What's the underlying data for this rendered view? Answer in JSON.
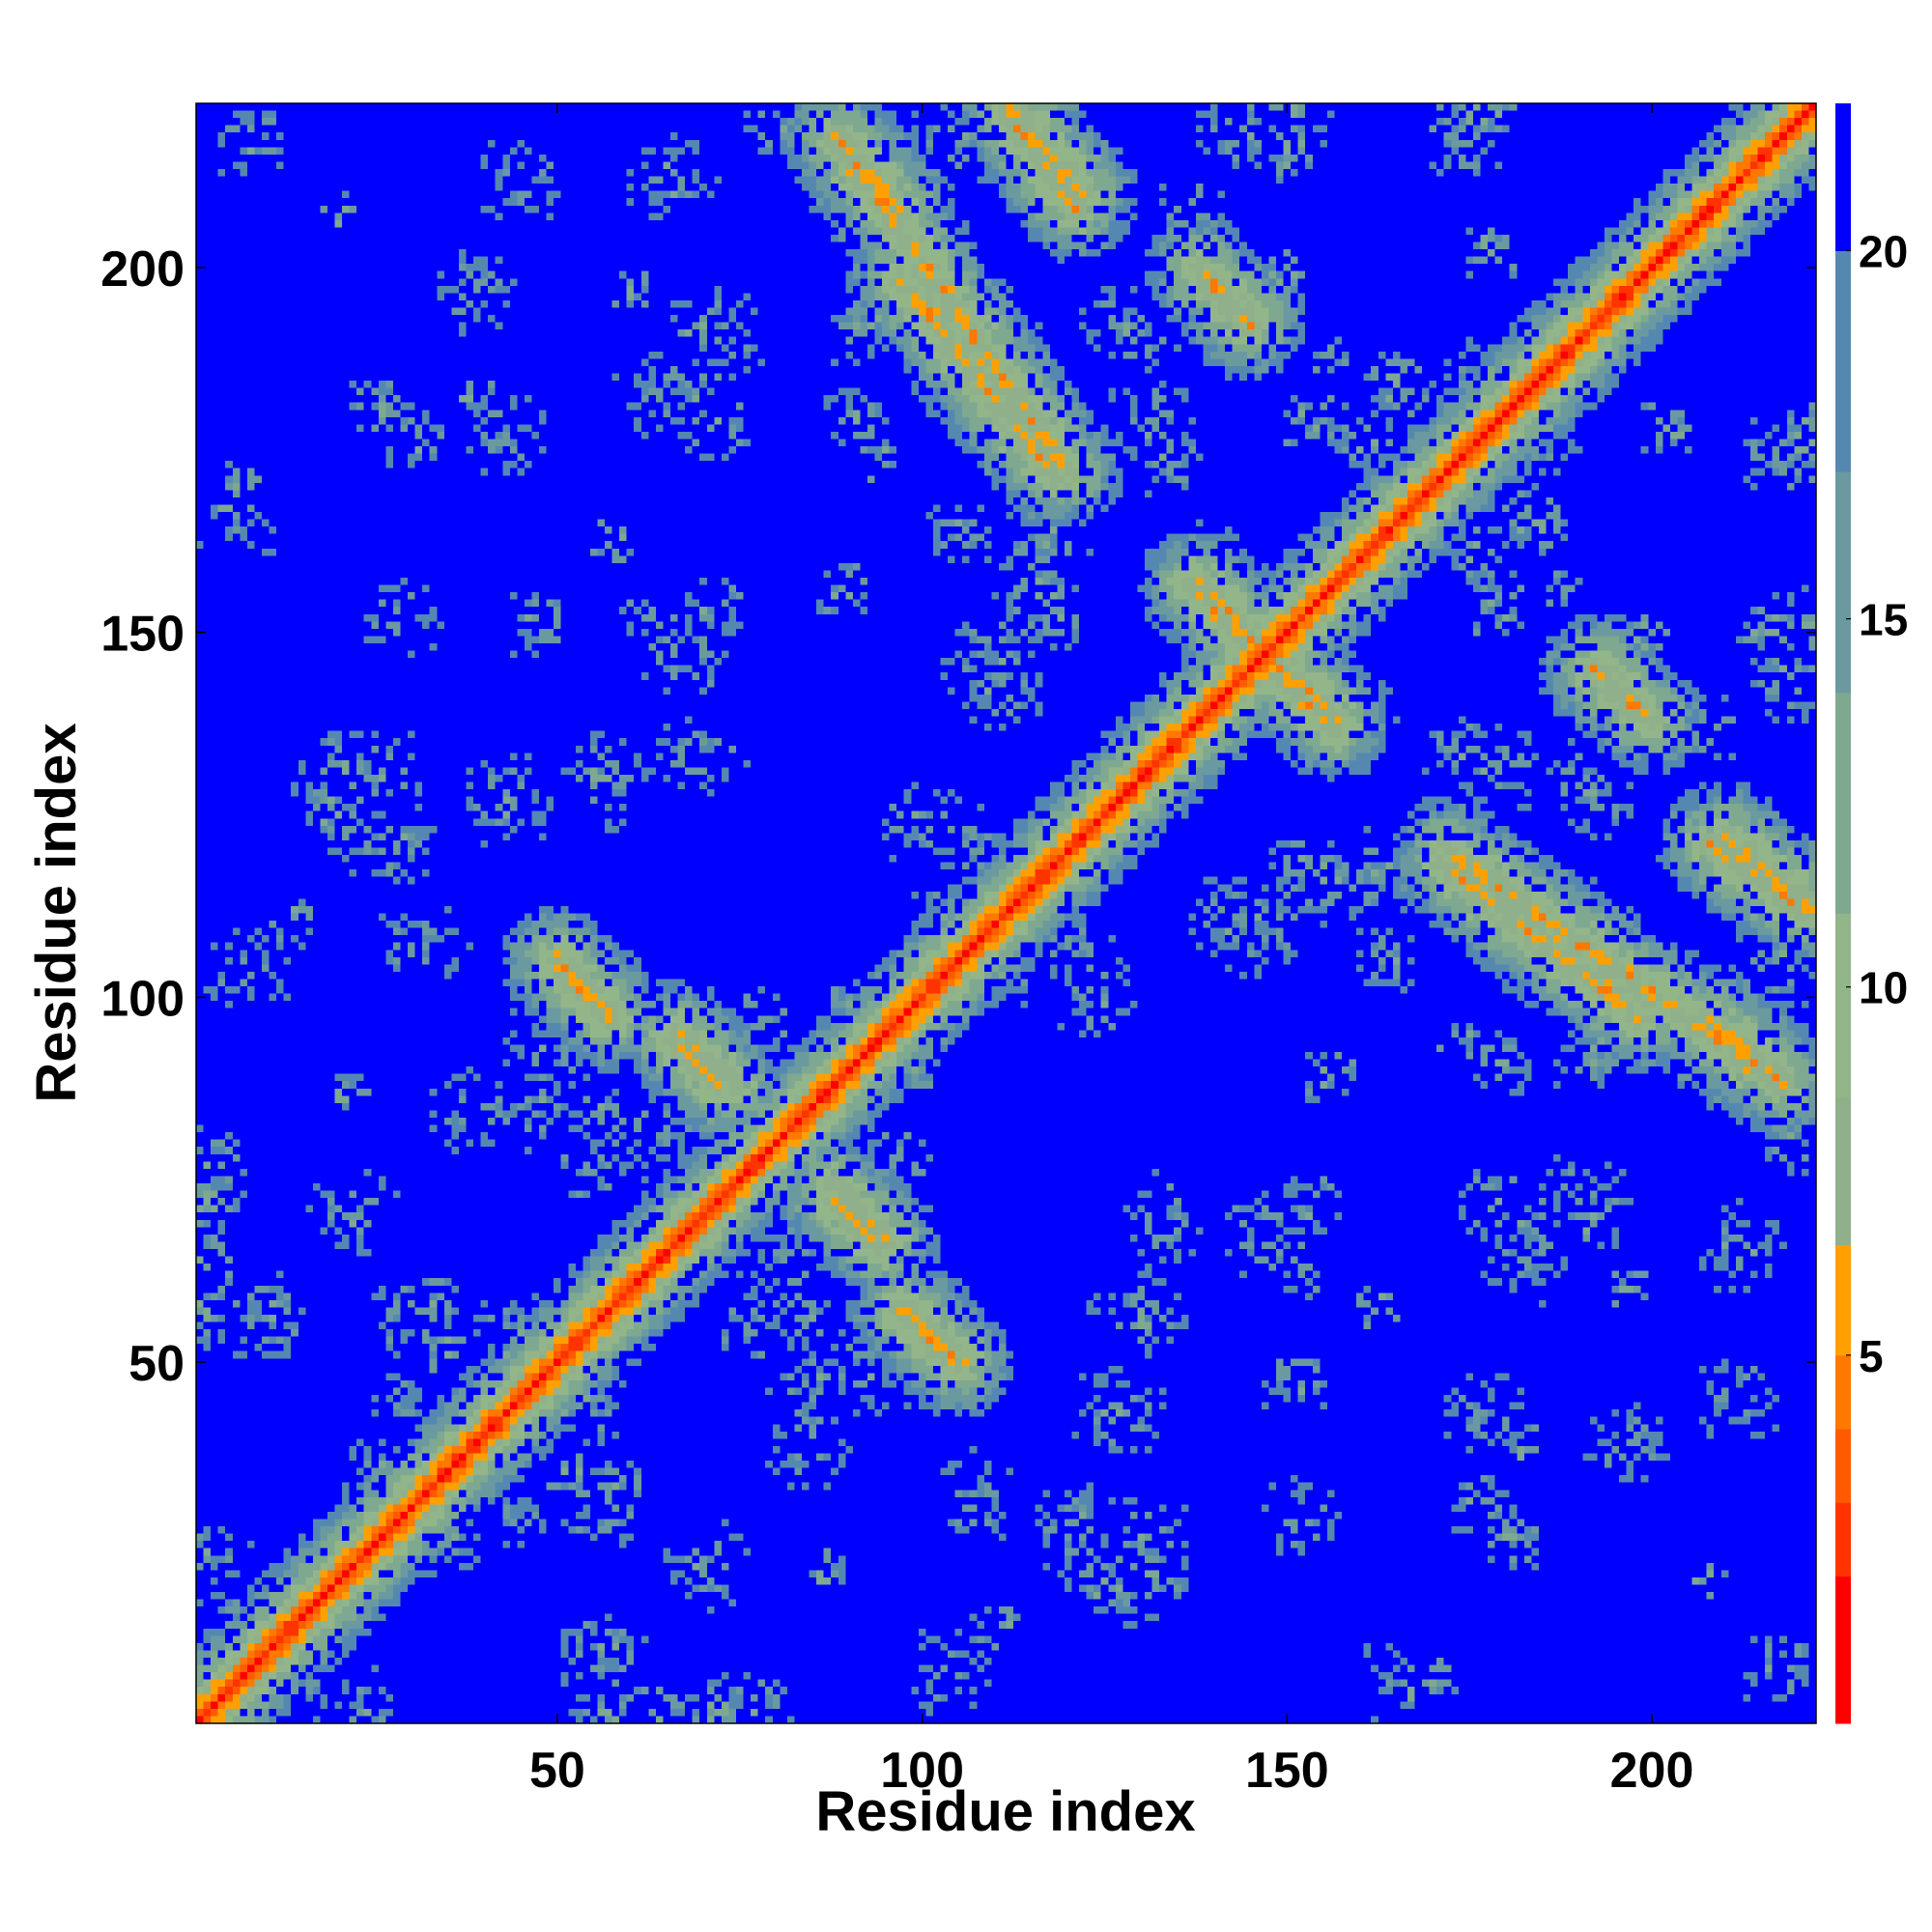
{
  "chart_data": {
    "type": "heatmap",
    "xlabel": "Residue index",
    "ylabel": "Residue index",
    "n_residues": 222,
    "xlim": [
      1,
      222
    ],
    "ylim": [
      1,
      222
    ],
    "x_ticks": [
      50,
      100,
      150,
      200
    ],
    "y_ticks": [
      50,
      100,
      150,
      200
    ],
    "value_range": [
      0,
      22
    ],
    "colorbar": {
      "ticks": [
        5,
        10,
        15,
        20
      ],
      "tick_labels": [
        "5",
        "10",
        "15",
        "20"
      ],
      "colors": [
        "#ff0000",
        "#ff3300",
        "#ff5a00",
        "#ff7800",
        "#ffa000",
        "#8fb08a",
        "#93b58a",
        "#7fa890",
        "#6a9aa0",
        "#5588b0",
        "#0000ff"
      ],
      "bounds": [
        0,
        2,
        3,
        4,
        5,
        6.5,
        8.5,
        11,
        14,
        17,
        20,
        22
      ]
    },
    "contact_features": [
      {
        "kind": "diagonal",
        "from": 1,
        "to": 222
      },
      {
        "kind": "band",
        "x": [
          5,
          45
        ],
        "y": [
          5,
          45
        ],
        "note": "parallel"
      },
      {
        "kind": "band",
        "x": [
          50,
          57
        ],
        "y": [
          105,
          98
        ],
        "note": "anti"
      },
      {
        "kind": "band",
        "x": [
          67,
          74
        ],
        "y": [
          95,
          88
        ],
        "note": "anti"
      },
      {
        "kind": "band",
        "x": [
          88,
          94
        ],
        "y": [
          72,
          66
        ],
        "note": "anti"
      },
      {
        "kind": "band",
        "x": [
          97,
          105
        ],
        "y": [
          57,
          50
        ],
        "note": "anti"
      },
      {
        "kind": "band",
        "x": [
          88,
          120
        ],
        "y": [
          218,
          172
        ],
        "note": "anti"
      },
      {
        "kind": "band",
        "x": [
          112,
          122
        ],
        "y": [
          222,
          210
        ],
        "note": "anti"
      },
      {
        "kind": "band",
        "x": [
          137,
          157
        ],
        "y": [
          156,
          138
        ],
        "note": "anti"
      },
      {
        "kind": "band",
        "x": [
          138,
          145
        ],
        "y": [
          200,
          193
        ],
        "note": "anti"
      },
      {
        "kind": "band",
        "x": [
          172,
          198
        ],
        "y": [
          118,
          97
        ],
        "note": "anti"
      },
      {
        "kind": "band",
        "x": [
          192,
          198
        ],
        "y": [
          145,
          139
        ],
        "note": "anti"
      },
      {
        "kind": "band",
        "x": [
          208,
          221
        ],
        "y": [
          121,
          112
        ],
        "note": "anti"
      },
      {
        "kind": "band",
        "x": [
          208,
          215
        ],
        "y": [
          97,
          91
        ],
        "note": "anti"
      }
    ]
  }
}
